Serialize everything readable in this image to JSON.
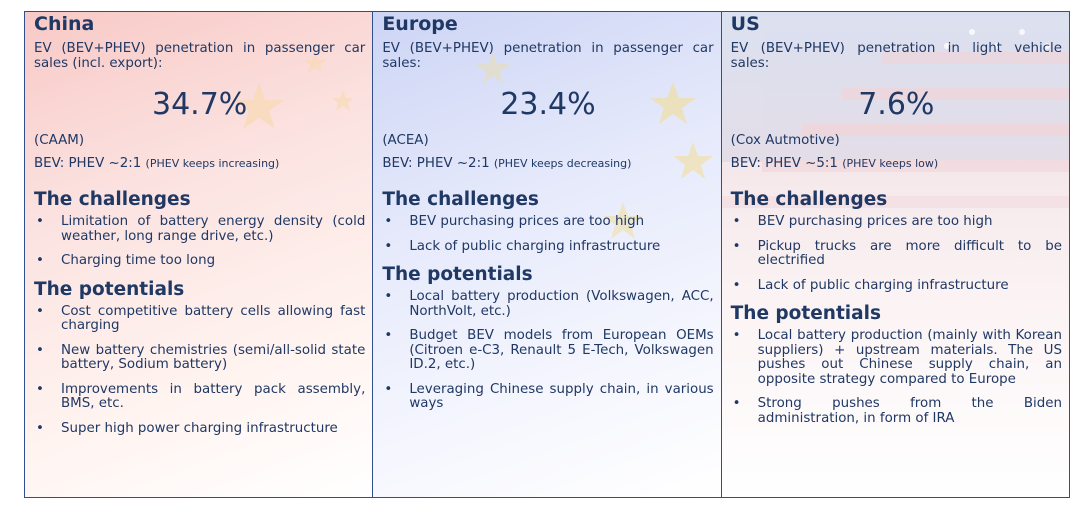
{
  "columns": [
    {
      "region": "China",
      "subtitle": "EV (BEV+PHEV) penetration in passenger car sales (incl. export):",
      "value": "34.7%",
      "source": "(CAAM)",
      "ratio": "BEV: PHEV ~2:1",
      "ratio_note": "(PHEV keeps increasing)",
      "challenges_title": "The challenges",
      "challenges": [
        "Limitation of battery energy density (cold weather, long range drive, etc.)",
        "Charging time too long"
      ],
      "potentials_title": "The potentials",
      "potentials": [
        "Cost competitive battery cells allowing fast charging",
        "New battery chemistries (semi/all-solid state battery, Sodium battery)",
        "Improvements in battery pack assembly, BMS, etc.",
        "Super high power charging infrastructure"
      ]
    },
    {
      "region": "Europe",
      "subtitle": "EV (BEV+PHEV) penetration in passenger car sales:",
      "value": "23.4%",
      "source": "(ACEA)",
      "ratio": "BEV: PHEV ~2:1",
      "ratio_note": "(PHEV keeps decreasing)",
      "challenges_title": "The challenges",
      "challenges": [
        "BEV purchasing prices are too high",
        "Lack of public charging infrastructure"
      ],
      "potentials_title": "The potentials",
      "potentials": [
        "Local battery production (Volkswagen, ACC, NorthVolt, etc.)",
        "Budget BEV models from European OEMs (Citroen e-C3, Renault 5 E-Tech, Volkswagen ID.2, etc.)",
        "Leveraging Chinese supply chain, in various ways"
      ]
    },
    {
      "region": "US",
      "subtitle": "EV (BEV+PHEV) penetration in light vehicle sales:",
      "value": "7.6%",
      "source": "(Cox Autmotive)",
      "ratio": "BEV: PHEV ~5:1",
      "ratio_note": "(PHEV keeps low)",
      "challenges_title": "The challenges",
      "challenges": [
        "BEV purchasing prices are too high",
        "Pickup trucks are more difficult to be electrified",
        "Lack of public charging infrastructure"
      ],
      "potentials_title": "The potentials",
      "potentials": [
        "Local battery production (mainly with Korean suppliers) + upstream materials. The US pushes out Chinese supply chain, an opposite strategy compared to Europe",
        "Strong pushes from the Biden administration, in form of IRA"
      ]
    }
  ]
}
